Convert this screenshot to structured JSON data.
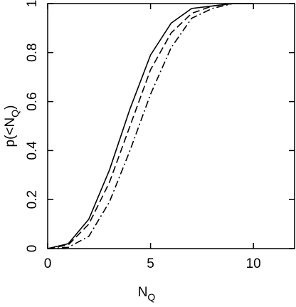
{
  "chart_data": {
    "type": "line",
    "xlabel": [
      "N",
      "Q"
    ],
    "ylabel": [
      "p(<N",
      "Q",
      ")"
    ],
    "x": [
      0,
      1,
      2,
      3,
      4,
      5,
      6,
      7,
      8,
      9,
      10
    ],
    "series": [
      {
        "color": "#000000",
        "dash": "solid",
        "values": [
          0,
          0.02,
          0.12,
          0.32,
          0.57,
          0.79,
          0.92,
          0.98,
          0.99,
          1.0,
          1.0
        ]
      },
      {
        "color": "#000000",
        "dash": "dashed",
        "values": [
          0,
          0.015,
          0.1,
          0.27,
          0.5,
          0.73,
          0.88,
          0.96,
          0.99,
          1.0,
          1.0
        ]
      },
      {
        "color": "#000000",
        "dash": "dashdot",
        "values": [
          0,
          0.005,
          0.05,
          0.19,
          0.4,
          0.63,
          0.82,
          0.94,
          0.98,
          1.0,
          1.0
        ]
      }
    ],
    "xlim": [
      0,
      12
    ],
    "xticks": [
      0,
      5,
      10
    ],
    "ylim": [
      0,
      1
    ],
    "yticks": [
      0,
      0.2,
      0.4,
      0.6,
      0.8,
      1
    ],
    "grid": false
  }
}
